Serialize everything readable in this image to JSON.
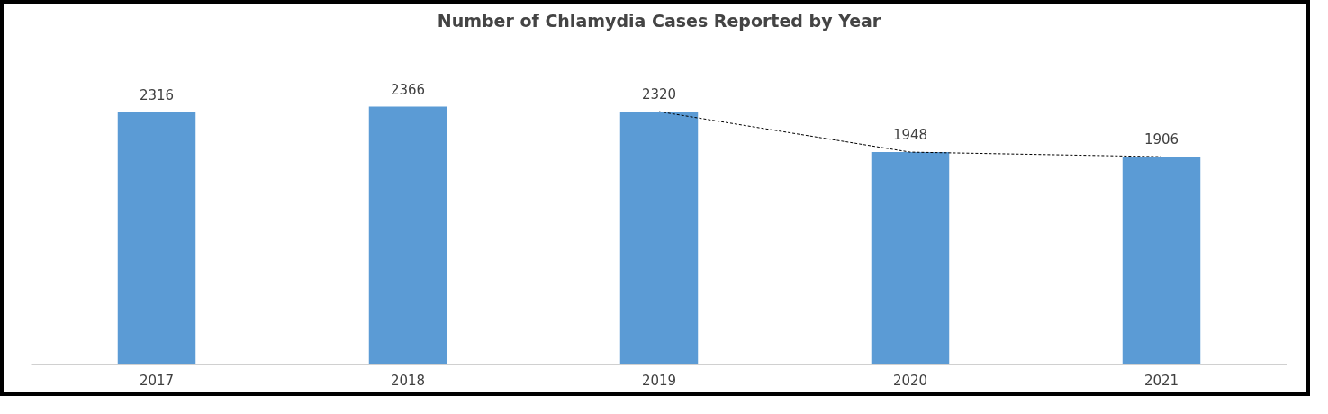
{
  "chart_data": {
    "type": "bar",
    "title": "Number of Chlamydia Cases Reported by Year",
    "categories": [
      "2017",
      "2018",
      "2019",
      "2020",
      "2021"
    ],
    "values": [
      2316,
      2366,
      2320,
      1948,
      1906
    ],
    "color": "#5b9bd5",
    "data_labels": true,
    "grid": false,
    "series": [
      {
        "type": "line",
        "values": [
          null,
          null,
          2320,
          1948,
          1906
        ],
        "value_labels": [
          null,
          null,
          null,
          null,
          null
        ],
        "color": "#000000",
        "line_style": "dashed"
      }
    ]
  }
}
